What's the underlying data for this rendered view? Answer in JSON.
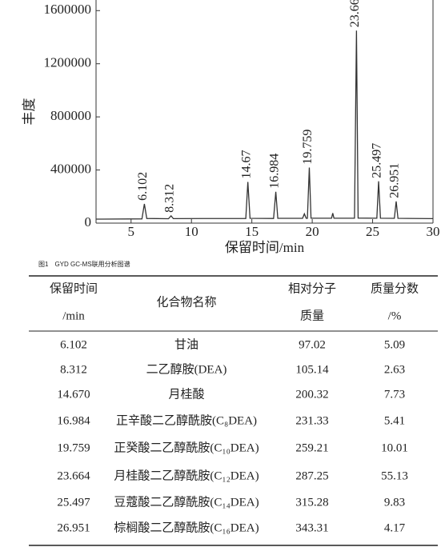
{
  "chart_data": {
    "type": "line",
    "ylabel": "丰度",
    "xlabel": "保留时间/min",
    "caption": "图1　GYD GC-MS联用分析图谱",
    "xlim": [
      2.1,
      30
    ],
    "xticks": [
      5,
      10,
      15,
      20,
      25,
      30
    ],
    "ylim": [
      0,
      1680000
    ],
    "yticks": [
      0,
      400000,
      800000,
      1200000,
      1600000
    ],
    "series": [
      {
        "color": "#333333",
        "x": [
          2.1,
          5.9,
          6.102,
          6.3,
          8.1,
          8.312,
          8.5,
          14.5,
          14.67,
          14.85,
          16.8,
          16.984,
          17.15,
          19.2,
          19.35,
          19.5,
          19.6,
          19.759,
          19.9,
          21.6,
          21.7,
          21.8,
          23.5,
          23.664,
          23.8,
          25.35,
          25.497,
          25.65,
          26.8,
          26.951,
          27.1,
          30
        ],
        "values": [
          30000,
          32000,
          145000,
          35000,
          33000,
          55000,
          34000,
          35000,
          310000,
          36000,
          35000,
          236000,
          36000,
          36000,
          70000,
          36000,
          36000,
          418000,
          37000,
          37000,
          75000,
          37000,
          37000,
          1450000,
          38000,
          37000,
          315000,
          37000,
          36000,
          164000,
          36000,
          34000
        ]
      }
    ],
    "peaks": [
      6.102,
      8.312,
      14.67,
      16.984,
      19.759,
      23.664,
      25.497,
      26.951
    ]
  },
  "table": {
    "header": [
      [
        "保留时间",
        "/min"
      ],
      [
        "化合物名称"
      ],
      [
        "相对分子",
        "质量"
      ],
      [
        "质量分数",
        "/%"
      ]
    ],
    "rows": [
      [
        "6.102",
        "甘油",
        "97.02",
        "5.09"
      ],
      [
        "8.312",
        "二乙醇胺(DEA)",
        "105.14",
        "2.63"
      ],
      [
        "14.670",
        "月桂酸",
        "200.32",
        "7.73"
      ],
      [
        "16.984",
        "正辛酸二乙醇酰胺(C₈DEA)",
        "231.33",
        "5.41"
      ],
      [
        "19.759",
        "正癸酸二乙醇酰胺(C₁₀DEA)",
        "259.21",
        "10.01"
      ],
      [
        "23.664",
        "月桂酸二乙醇酰胺(C₁₂DEA)",
        "287.25",
        "55.13"
      ],
      [
        "25.497",
        "豆蔻酸二乙醇酰胺(C₁₄DEA)",
        "315.28",
        "9.83"
      ],
      [
        "26.951",
        "棕榈酸二乙醇酰胺(C₁₆DEA)",
        "343.31",
        "4.17"
      ]
    ]
  }
}
